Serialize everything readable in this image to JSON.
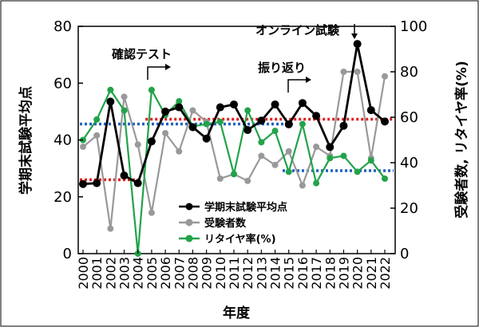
{
  "chart_data": {
    "type": "line",
    "xlabel": "年度",
    "ylabel_left": "学期末試験平均点",
    "ylabel_right": "受験者数, リタイヤ率(%)",
    "ylim_left": [
      0,
      80
    ],
    "ylim_right": [
      0,
      100
    ],
    "yticks_left": [
      "0",
      "20",
      "40",
      "60",
      "80"
    ],
    "yticks_right": [
      "0",
      "20",
      "40",
      "60",
      "80",
      "100"
    ],
    "grid": false,
    "legend_position": "bottom-center",
    "x": [
      "2000",
      "2001",
      "2002",
      "2003",
      "2004",
      "2005",
      "2006",
      "2007",
      "2008",
      "2009",
      "2010",
      "2011",
      "2012",
      "2013",
      "2014",
      "2015",
      "2016",
      "2017",
      "2018",
      "2019",
      "2020",
      "2021",
      "2022"
    ],
    "series": [
      {
        "name": "学期末試験平均点",
        "axis": "left",
        "color": "#000000",
        "marker": "circle-filled",
        "values": [
          24.5,
          24.8,
          53.5,
          27.5,
          24.8,
          39.5,
          50,
          51.5,
          44.5,
          40.5,
          51.5,
          52.5,
          43.5,
          46.8,
          52.5,
          45.5,
          53,
          48.5,
          37.5,
          45,
          73.8,
          50.5,
          46.5
        ]
      },
      {
        "name": "受験者数",
        "axis": "right",
        "color": "#999999",
        "marker": "circle-filled",
        "values": [
          47,
          52,
          11,
          69,
          48,
          18,
          53,
          45,
          63,
          58,
          33,
          35,
          32,
          43,
          39,
          45,
          30,
          47,
          43,
          80,
          80,
          42,
          78
        ]
      },
      {
        "name": "リタイヤ率(%)",
        "axis": "right",
        "color": "#22a34a",
        "marker": "circle-filled",
        "values": [
          50,
          59,
          72,
          63,
          0,
          72,
          61,
          67,
          56,
          57,
          58,
          35,
          63,
          49,
          54,
          36,
          57,
          31,
          42,
          43,
          36,
          41,
          33
        ]
      }
    ],
    "reference_lines": [
      {
        "color": "#e02020",
        "axis": "left",
        "x_from": "2000",
        "x_to": "2004",
        "value": 26
      },
      {
        "color": "#e02020",
        "axis": "left",
        "x_from": "2005",
        "x_to": "2022",
        "value": 47.3
      },
      {
        "color": "#2060c0",
        "axis": "right",
        "x_from": "2000",
        "x_to": "2015",
        "value": 57
      },
      {
        "color": "#2060c0",
        "axis": "right",
        "x_from": "2015",
        "x_to": "2022",
        "value": 36.5
      }
    ],
    "annotations": [
      {
        "text": "確認テスト",
        "x": "2005"
      },
      {
        "text": "振り返り",
        "x": "2015"
      },
      {
        "text": "オンライン試験",
        "x": "2020"
      }
    ]
  }
}
